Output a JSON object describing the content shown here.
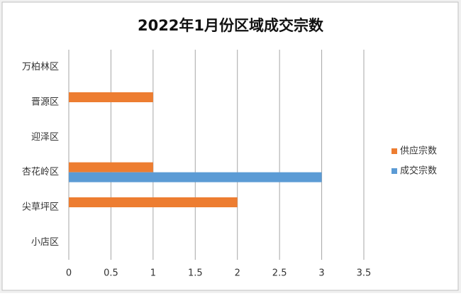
{
  "chart_data": {
    "type": "hbar",
    "title": "2022年1月份区域成交宗数",
    "categories": [
      "万柏林区",
      "晋源区",
      "迎泽区",
      "杏花岭区",
      "尖草坪区",
      "小店区"
    ],
    "series": [
      {
        "name": "供应宗数",
        "color": "#ed7d31",
        "values": [
          0,
          1,
          0,
          1,
          2,
          0
        ]
      },
      {
        "name": "成交宗数",
        "color": "#5b9bd5",
        "values": [
          0,
          0,
          0,
          3,
          0,
          0
        ]
      }
    ],
    "xlim": [
      0,
      3.5
    ],
    "xticks": [
      0,
      0.5,
      1,
      1.5,
      2,
      2.5,
      3,
      3.5
    ],
    "grid": true,
    "legend": "right"
  }
}
